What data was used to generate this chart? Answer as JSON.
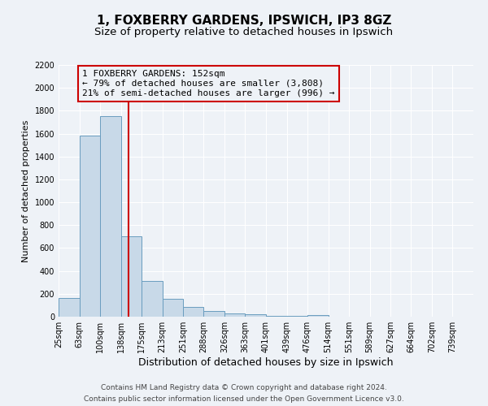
{
  "title": "1, FOXBERRY GARDENS, IPSWICH, IP3 8GZ",
  "subtitle": "Size of property relative to detached houses in Ipswich",
  "xlabel": "Distribution of detached houses by size in Ipswich",
  "ylabel": "Number of detached properties",
  "footer_line1": "Contains HM Land Registry data © Crown copyright and database right 2024.",
  "footer_line2": "Contains public sector information licensed under the Open Government Licence v3.0.",
  "annotation_line1": "1 FOXBERRY GARDENS: 152sqm",
  "annotation_line2": "← 79% of detached houses are smaller (3,808)",
  "annotation_line3": "21% of semi-detached houses are larger (996) →",
  "bar_edges": [
    25,
    63,
    100,
    138,
    175,
    213,
    251,
    288,
    326,
    363,
    401,
    439,
    476,
    514,
    551,
    589,
    627,
    664,
    702,
    739,
    777
  ],
  "bar_heights": [
    160,
    1580,
    1750,
    700,
    315,
    155,
    85,
    50,
    30,
    20,
    10,
    5,
    15,
    0,
    0,
    0,
    0,
    0,
    0,
    0
  ],
  "bar_color": "#c8d9e8",
  "bar_edge_color": "#6a9dbf",
  "vline_x": 152,
  "vline_color": "#cc0000",
  "annotation_box_color": "#cc0000",
  "ylim": [
    0,
    2200
  ],
  "yticks": [
    0,
    200,
    400,
    600,
    800,
    1000,
    1200,
    1400,
    1600,
    1800,
    2000,
    2200
  ],
  "background_color": "#eef2f7",
  "grid_color": "#ffffff",
  "title_fontsize": 11,
  "subtitle_fontsize": 9.5,
  "xlabel_fontsize": 9,
  "ylabel_fontsize": 8,
  "tick_label_fontsize": 7,
  "annotation_fontsize": 8,
  "footer_fontsize": 6.5
}
